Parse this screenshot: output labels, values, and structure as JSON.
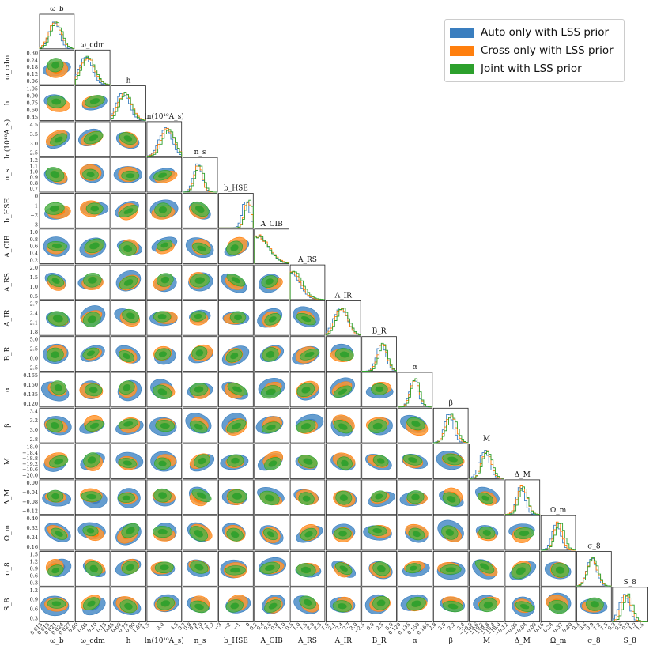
{
  "chart_data": {
    "type": "corner",
    "params": [
      {
        "label": "ω_b",
        "yticks": [],
        "xticks": [
          "0.015",
          "0.018",
          "0.021",
          "0.024",
          "0.027"
        ],
        "mu": 0.45,
        "sd": 0.16
      },
      {
        "label": "ω_cdm",
        "yticks": [
          "0.30",
          "0.24",
          "0.18",
          "0.12",
          "0.06"
        ],
        "xticks": [
          "0.00",
          "0.05",
          "0.10",
          "0.15"
        ],
        "mu": 0.35,
        "sd": 0.2
      },
      {
        "label": "h",
        "yticks": [
          "1.05",
          "0.90",
          "0.75",
          "0.60",
          "0.45"
        ],
        "xticks": [
          "0.45",
          "0.60",
          "0.75",
          "0.90",
          "1.05"
        ],
        "mu": 0.4,
        "sd": 0.18
      },
      {
        "label": "ln(10¹⁰A_s)",
        "yticks": [
          "4.5",
          "3.5",
          "3.0",
          "2.5"
        ],
        "xticks": [
          "1.5",
          "3.0",
          "4.5"
        ],
        "mu": 0.6,
        "sd": 0.18
      },
      {
        "label": "n_s",
        "yticks": [
          "1.2",
          "1.1",
          "1.0",
          "0.9",
          "0.8",
          "0.7"
        ],
        "xticks": [
          "0.7",
          "0.8",
          "0.9",
          "1.0",
          "1.1",
          "1.2"
        ],
        "mu": 0.45,
        "sd": 0.12
      },
      {
        "label": "b_HSE",
        "yticks": [
          "0",
          "−1",
          "−2",
          "−3"
        ],
        "xticks": [
          "−3",
          "−2",
          "−1",
          "0"
        ],
        "mu": 0.85,
        "sd": 0.1
      },
      {
        "label": "A_CIB",
        "yticks": [
          "1.0",
          "0.8",
          "0.6",
          "0.4",
          "0.2"
        ],
        "xticks": [
          "0.2",
          "0.4",
          "0.6",
          "0.8",
          "1.0"
        ],
        "mu": 0.1,
        "sd": 0.3
      },
      {
        "label": "A_RS",
        "yticks": [
          "2.0",
          "1.5",
          "1.0",
          "0.5"
        ],
        "xticks": [
          "0.5",
          "1.0",
          "1.5",
          "2.0",
          "2.5"
        ],
        "mu": 0.05,
        "sd": 0.25
      },
      {
        "label": "A_IR",
        "yticks": [
          "2.7",
          "2.4",
          "2.1",
          "1.8"
        ],
        "xticks": [
          "1.8",
          "2.1",
          "2.4",
          "2.7",
          "3.0"
        ],
        "mu": 0.45,
        "sd": 0.18
      },
      {
        "label": "B_R",
        "yticks": [
          "5.0",
          "2.5",
          "0.0",
          "−2.5"
        ],
        "xticks": [
          "−2.5",
          "0.0",
          "2.5",
          "5.0"
        ],
        "mu": 0.6,
        "sd": 0.14
      },
      {
        "label": "α",
        "yticks": [
          "0.165",
          "0.150",
          "0.135",
          "0.120"
        ],
        "xticks": [
          "0.120",
          "0.135",
          "0.150",
          "0.165"
        ],
        "mu": 0.5,
        "sd": 0.13
      },
      {
        "label": "β",
        "yticks": [
          "3.4",
          "3.2",
          "3.0",
          "2.8"
        ],
        "xticks": [
          "2.8",
          "3.0",
          "3.2",
          "3.4"
        ],
        "mu": 0.5,
        "sd": 0.14
      },
      {
        "label": "M",
        "yticks": [
          "−18.0",
          "−18.4",
          "−18.8",
          "−19.2",
          "−19.6",
          "−20.0"
        ],
        "xticks": [
          "−20.0",
          "−19.6",
          "−19.2",
          "−18.8",
          "−18.4",
          "−18.0"
        ],
        "mu": 0.5,
        "sd": 0.14
      },
      {
        "label": "Δ_M",
        "yticks": [
          "0.00",
          "−0.04",
          "−0.08",
          "−0.12"
        ],
        "xticks": [
          "−0.12",
          "−0.08",
          "−0.04",
          "0.00"
        ],
        "mu": 0.5,
        "sd": 0.13
      },
      {
        "label": "Ω_m",
        "yticks": [
          "0.40",
          "0.32",
          "0.24",
          "0.16"
        ],
        "xticks": [
          "0.16",
          "0.24",
          "0.32",
          "0.40"
        ],
        "mu": 0.5,
        "sd": 0.13
      },
      {
        "label": "σ_8",
        "yticks": [
          "1.5",
          "1.2",
          "0.9",
          "0.6",
          "0.3"
        ],
        "xticks": [
          "0.3",
          "0.6",
          "0.9",
          "1.2",
          "1.5"
        ],
        "mu": 0.45,
        "sd": 0.15
      },
      {
        "label": "S_8",
        "yticks": [
          "1.2",
          "0.9",
          "0.6",
          "0.3"
        ],
        "xticks": [
          "0.3",
          "0.6",
          "0.9",
          "1.2",
          "1.5"
        ],
        "mu": 0.4,
        "sd": 0.14
      }
    ],
    "series": [
      {
        "name": "Auto only with LSS prior",
        "color": "#3a7ebf",
        "fill": "#4a8cc7"
      },
      {
        "name": "Cross only with LSS prior",
        "color": "#ff7f0e",
        "fill": "#ff9933"
      },
      {
        "name": "Joint with LSS prior",
        "color": "#2ca02c",
        "fill": "#55b34a"
      }
    ],
    "legend_position": "top-right"
  }
}
